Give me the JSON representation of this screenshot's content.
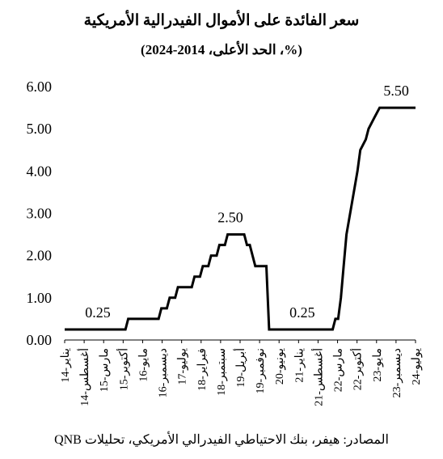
{
  "title": "سعر الفائدة على الأموال الفيدرالية الأمريكية",
  "subtitle": "(%، الحد الأعلى، 2014-2024)",
  "source": "المصادر: هيفر، بنك الاحتياطي الفيدرالي الأمريكي، تحليلات QNB",
  "chart_data": {
    "type": "line",
    "title": "سعر الفائدة على الأموال الفيدرالية الأمريكية",
    "subtitle": "(%، الحد الأعلى، 2014-2024)",
    "ylim": [
      0,
      6
    ],
    "yticks": [
      "0.00",
      "1.00",
      "2.00",
      "3.00",
      "4.00",
      "5.00",
      "6.00"
    ],
    "xticks": [
      "يناير-14",
      "أغسطس-14",
      "مارس-15",
      "أكتوبر-15",
      "مايو-16",
      "ديسمبر-16",
      "يوليو-17",
      "فبراير-18",
      "سبتمبر-18",
      "أبريل-19",
      "نوفمبر-19",
      "يونيو-20",
      "يناير-21",
      "أغسطس-21",
      "مارس-22",
      "أكتوبر-22",
      "مايو-23",
      "ديسمبر-23",
      "يوليو-24"
    ],
    "grid": false,
    "color": "#000000",
    "series": [
      {
        "x": [
          "2014-01",
          "2015-11",
          "2015-12",
          "2016-11",
          "2016-12",
          "2017-02",
          "2017-03",
          "2017-05",
          "2017-06",
          "2017-11",
          "2017-12",
          "2018-02",
          "2018-03",
          "2018-05",
          "2018-06",
          "2018-08",
          "2018-09",
          "2018-11",
          "2018-12",
          "2019-06",
          "2019-07",
          "2019-08",
          "2019-09",
          "2019-10",
          "2020-02",
          "2020-03",
          "2022-02",
          "2022-03",
          "2022-04",
          "2022-05",
          "2022-06",
          "2022-07",
          "2022-09",
          "2022-11",
          "2022-12",
          "2023-02",
          "2023-03",
          "2023-05",
          "2023-07",
          "2024-08"
        ],
        "values": [
          0.25,
          0.25,
          0.5,
          0.5,
          0.75,
          0.75,
          1.0,
          1.0,
          1.25,
          1.25,
          1.5,
          1.5,
          1.75,
          1.75,
          2.0,
          2.0,
          2.25,
          2.25,
          2.5,
          2.5,
          2.25,
          2.25,
          2.0,
          1.75,
          1.75,
          0.25,
          0.25,
          0.5,
          0.5,
          1.0,
          1.75,
          2.5,
          3.25,
          4.0,
          4.5,
          4.75,
          5.0,
          5.25,
          5.5,
          5.5
        ]
      }
    ],
    "annotations": [
      {
        "x": "2015-01",
        "y": 0.25,
        "text": "0.25"
      },
      {
        "x": "2019-01",
        "y": 2.5,
        "text": "2.50"
      },
      {
        "x": "2021-03",
        "y": 0.25,
        "text": "0.25"
      },
      {
        "x": "2024-01",
        "y": 5.5,
        "text": "5.50"
      }
    ]
  }
}
